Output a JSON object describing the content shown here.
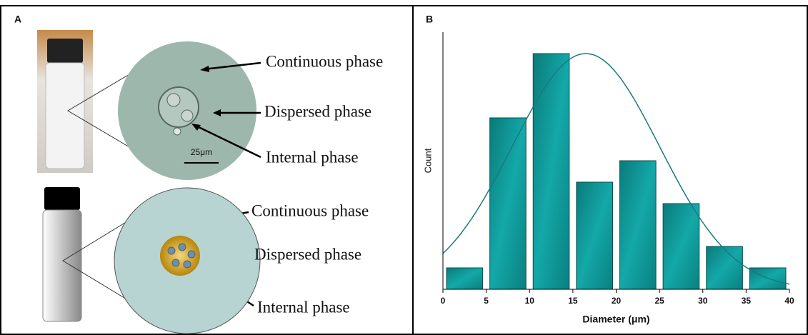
{
  "panel_a": {
    "label": "A",
    "micrograph": {
      "labels": [
        "Continuous phase",
        "Dispersed phase",
        "Internal phase"
      ],
      "scale_bar": "25μm"
    },
    "schematic": {
      "labels": [
        "Continuous phase",
        "Dispersed phase",
        "Internal phase"
      ]
    }
  },
  "chart_data": {
    "type": "histogram",
    "panel_label": "B",
    "x_label": "Diameter (μm)",
    "y_label": "Count",
    "bins": [
      0,
      5,
      10,
      15,
      20,
      25,
      30,
      35,
      40
    ],
    "values": [
      1,
      8,
      11,
      5,
      6,
      4,
      2,
      1
    ],
    "xlim": [
      0,
      40
    ],
    "xticks": [
      0,
      5,
      10,
      15,
      20,
      25,
      30,
      35,
      40
    ],
    "ylim": [
      0,
      12
    ],
    "color": "#12a3a3",
    "fit_curve": {
      "mean": 16.5,
      "sd": 8.5,
      "amplitude": 11,
      "color": "#1a7a80"
    }
  }
}
